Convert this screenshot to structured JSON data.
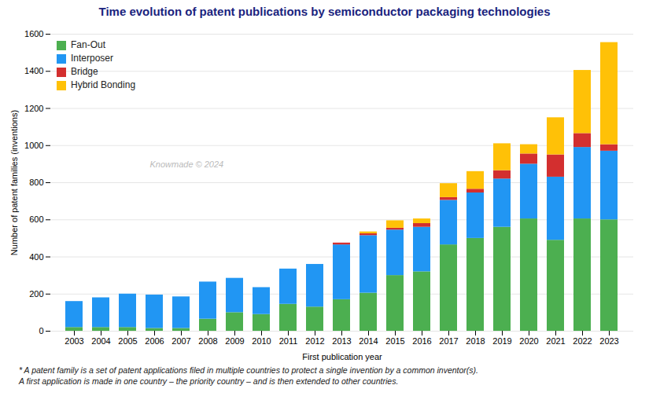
{
  "chart_data": {
    "type": "bar",
    "stacked": true,
    "title": "Time evolution of patent publications by semiconductor packaging technologies",
    "xlabel": "First publication year",
    "ylabel": "Number of patent families (inventions)",
    "categories": [
      "2003",
      "2004",
      "2005",
      "2006",
      "2007",
      "2008",
      "2009",
      "2010",
      "2011",
      "2012",
      "2013",
      "2014",
      "2015",
      "2016",
      "2017",
      "2018",
      "2019",
      "2020",
      "2021",
      "2022",
      "2023"
    ],
    "series": [
      {
        "name": "Fan-Out",
        "color": "#4CAF50",
        "values": [
          20,
          20,
          20,
          15,
          15,
          65,
          100,
          90,
          145,
          130,
          170,
          205,
          300,
          320,
          465,
          500,
          560,
          605,
          490,
          605,
          600
        ]
      },
      {
        "name": "Interposer",
        "color": "#2196F3",
        "values": [
          140,
          160,
          180,
          180,
          170,
          200,
          185,
          145,
          190,
          230,
          295,
          310,
          245,
          240,
          240,
          245,
          260,
          295,
          340,
          385,
          370
        ]
      },
      {
        "name": "Bridge",
        "color": "#D32F2F",
        "values": [
          0,
          0,
          0,
          0,
          0,
          0,
          0,
          0,
          0,
          0,
          10,
          10,
          10,
          20,
          15,
          20,
          45,
          55,
          120,
          75,
          35
        ]
      },
      {
        "name": "Hybrid Bonding",
        "color": "#FFC107",
        "values": [
          0,
          0,
          0,
          0,
          0,
          0,
          0,
          0,
          0,
          0,
          0,
          10,
          40,
          25,
          75,
          95,
          145,
          50,
          200,
          340,
          550
        ]
      }
    ],
    "ylim": [
      0,
      1600
    ],
    "yticks": [
      0,
      200,
      400,
      600,
      800,
      1000,
      1200,
      1400,
      1600
    ],
    "grid": true,
    "legend": "upper left",
    "annotations": [
      "Knowmade © 2024",
      "* A patent family is a set of patent applications filed in multiple countries to protect a single invention by a common inventor(s).\nA first application is made in one country – the priority country – and is then extended to other countries."
    ]
  }
}
